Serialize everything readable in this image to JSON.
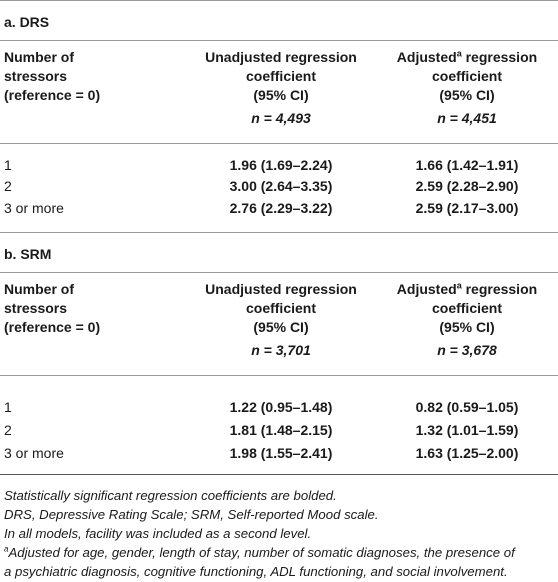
{
  "sections": [
    {
      "title": "a. DRS",
      "header": {
        "col1_lines": [
          "Number of",
          "stressors",
          "(reference = 0)"
        ],
        "col2_lines": [
          "Unadjusted regression",
          "coefficient",
          "(95% CI)"
        ],
        "col2_n": "n = 4,493",
        "col3_line1_pre": "Adjusted",
        "col3_line1_sup": "a",
        "col3_line1_post": " regression",
        "col3_lines": [
          "coefficient",
          "(95% CI)"
        ],
        "col3_n": "n = 4,451"
      },
      "rows": [
        {
          "label": "1",
          "unadjusted": "1.96 (1.69–2.24)",
          "adjusted": "1.66 (1.42–1.91)"
        },
        {
          "label": "2",
          "unadjusted": "3.00 (2.64–3.35)",
          "adjusted": "2.59 (2.28–2.90)"
        },
        {
          "label": "3 or more",
          "unadjusted": "2.76 (2.29–3.22)",
          "adjusted": "2.59 (2.17–3.00)"
        }
      ]
    },
    {
      "title": "b. SRM",
      "header": {
        "col1_lines": [
          "Number of",
          "stressors",
          "(reference = 0)"
        ],
        "col2_lines": [
          "Unadjusted regression",
          "coefficient",
          "(95% CI)"
        ],
        "col2_n": "n = 3,701",
        "col3_line1_pre": "Adjusted",
        "col3_line1_sup": "a",
        "col3_line1_post": " regression",
        "col3_lines": [
          "coefficient",
          "(95% CI)"
        ],
        "col3_n": "n = 3,678"
      },
      "rows": [
        {
          "label": "1",
          "unadjusted": "1.22 (0.95–1.48)",
          "adjusted": "0.82 (0.59–1.05)"
        },
        {
          "label": "2",
          "unadjusted": "1.81 (1.48–2.15)",
          "adjusted": "1.32 (1.01–1.59)"
        },
        {
          "label": "3 or more",
          "unadjusted": "1.98 (1.55–2.41)",
          "adjusted": "1.63 (1.25–2.00)"
        }
      ]
    }
  ],
  "notes": {
    "line1": "Statistically significant regression coefficients are bolded.",
    "line2": "DRS, Depressive Rating Scale; SRM, Self-reported Mood scale.",
    "line3": "In all models, facility was included as a second level.",
    "footnote_marker": "a",
    "footnote_line1": "Adjusted for age, gender, length of stay, number of somatic diagnoses, the presence of",
    "footnote_line2": "a psychiatric diagnosis, cognitive functioning, ADL functioning, and social involvement."
  }
}
